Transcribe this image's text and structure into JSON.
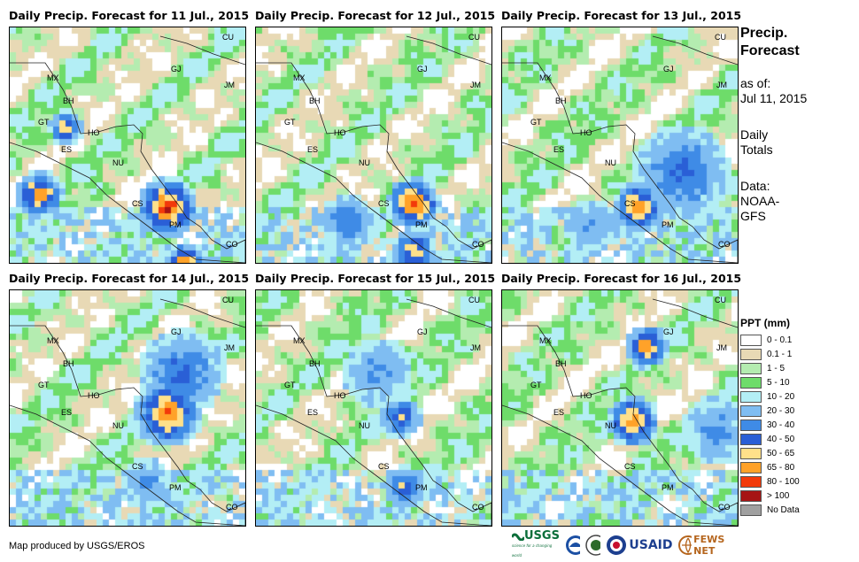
{
  "panels": [
    {
      "title": "Daily Precip. Forecast for 11 Jul., 2015",
      "seed": 11
    },
    {
      "title": "Daily Precip. Forecast for 12 Jul., 2015",
      "seed": 12
    },
    {
      "title": "Daily Precip. Forecast for 13 Jul., 2015",
      "seed": 13
    },
    {
      "title": "Daily Precip. Forecast for 14 Jul., 2015",
      "seed": 14
    },
    {
      "title": "Daily Precip. Forecast for 15 Jul., 2015",
      "seed": 15
    },
    {
      "title": "Daily Precip. Forecast for 16 Jul., 2015",
      "seed": 16
    }
  ],
  "country_labels": [
    "CU",
    "MX",
    "BH",
    "GT",
    "HO",
    "ES",
    "NU",
    "CS",
    "PM",
    "CO",
    "JM",
    "GJ"
  ],
  "side": {
    "title_line1": "Precip.",
    "title_line2": "Forecast",
    "asof_line1": "as of:",
    "asof_line2": "Jul 11, 2015",
    "totals_line1": "Daily",
    "totals_line2": "Totals",
    "data_line1": "Data:",
    "data_line2": "NOAA-",
    "data_line3": "GFS"
  },
  "legend": {
    "title": "PPT (mm)",
    "classes": [
      {
        "label": "0 - 0.1",
        "color": "#ffffff"
      },
      {
        "label": "0.1 - 1",
        "color": "#e8d9b5"
      },
      {
        "label": "1 - 5",
        "color": "#b4ecb0"
      },
      {
        "label": "5 - 10",
        "color": "#6edc6a"
      },
      {
        "label": "10 - 20",
        "color": "#b3eef5"
      },
      {
        "label": "20 - 30",
        "color": "#7fbdf2"
      },
      {
        "label": "30 - 40",
        "color": "#3f8be6"
      },
      {
        "label": "40 - 50",
        "color": "#2a5fd6"
      },
      {
        "label": "50 - 65",
        "color": "#ffe08a"
      },
      {
        "label": "65 - 80",
        "color": "#ffa229"
      },
      {
        "label": "80 - 100",
        "color": "#f23a0a"
      },
      {
        "label": "> 100",
        "color": "#a61414"
      },
      {
        "label": "No Data",
        "color": "#a0a0a0"
      }
    ]
  },
  "credit": "Map produced by USGS/EROS",
  "logos": {
    "usgs": "USGS",
    "usgs_tag": "science for a changing world",
    "usaid": "USAID",
    "fews": "FEWS NET"
  }
}
